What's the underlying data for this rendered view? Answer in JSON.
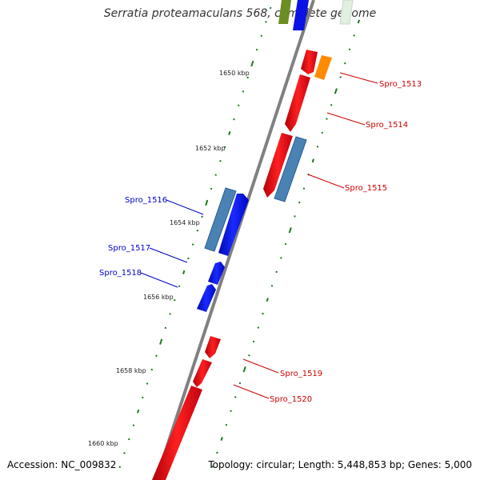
{
  "title": "Serratia proteamaculans 568, complete genome",
  "accession": "Accession: NC_009832",
  "summary": "Topology: circular; Length: 5,448,853 bp; Genes: 5,000",
  "colors": {
    "backbone": "#808080",
    "forward_gene": "#e30613",
    "reverse_gene": "#0a12e6",
    "rna_gene": "#4a82b4",
    "orange_gene": "#ff8c00",
    "olive_gene": "#6b8e23",
    "tick": "#1a7a1a",
    "label_forward": "#cc0000",
    "label_reverse": "#0000cc"
  },
  "scale_labels": [
    {
      "text": "1650 kbp"
    },
    {
      "text": "1652 kbp"
    },
    {
      "text": "1654 kbp"
    },
    {
      "text": "1656 kbp"
    },
    {
      "text": "1658 kbp"
    },
    {
      "text": "1660 kbp"
    }
  ],
  "gene_labels": [
    {
      "text": "Spro_1513",
      "strand": "forward"
    },
    {
      "text": "Spro_1514",
      "strand": "forward"
    },
    {
      "text": "Spro_1515",
      "strand": "forward"
    },
    {
      "text": "Spro_1516",
      "strand": "reverse"
    },
    {
      "text": "Spro_1517",
      "strand": "reverse"
    },
    {
      "text": "Spro_1518",
      "strand": "reverse"
    },
    {
      "text": "Spro_1519",
      "strand": "forward"
    },
    {
      "text": "Spro_1520",
      "strand": "forward"
    }
  ]
}
